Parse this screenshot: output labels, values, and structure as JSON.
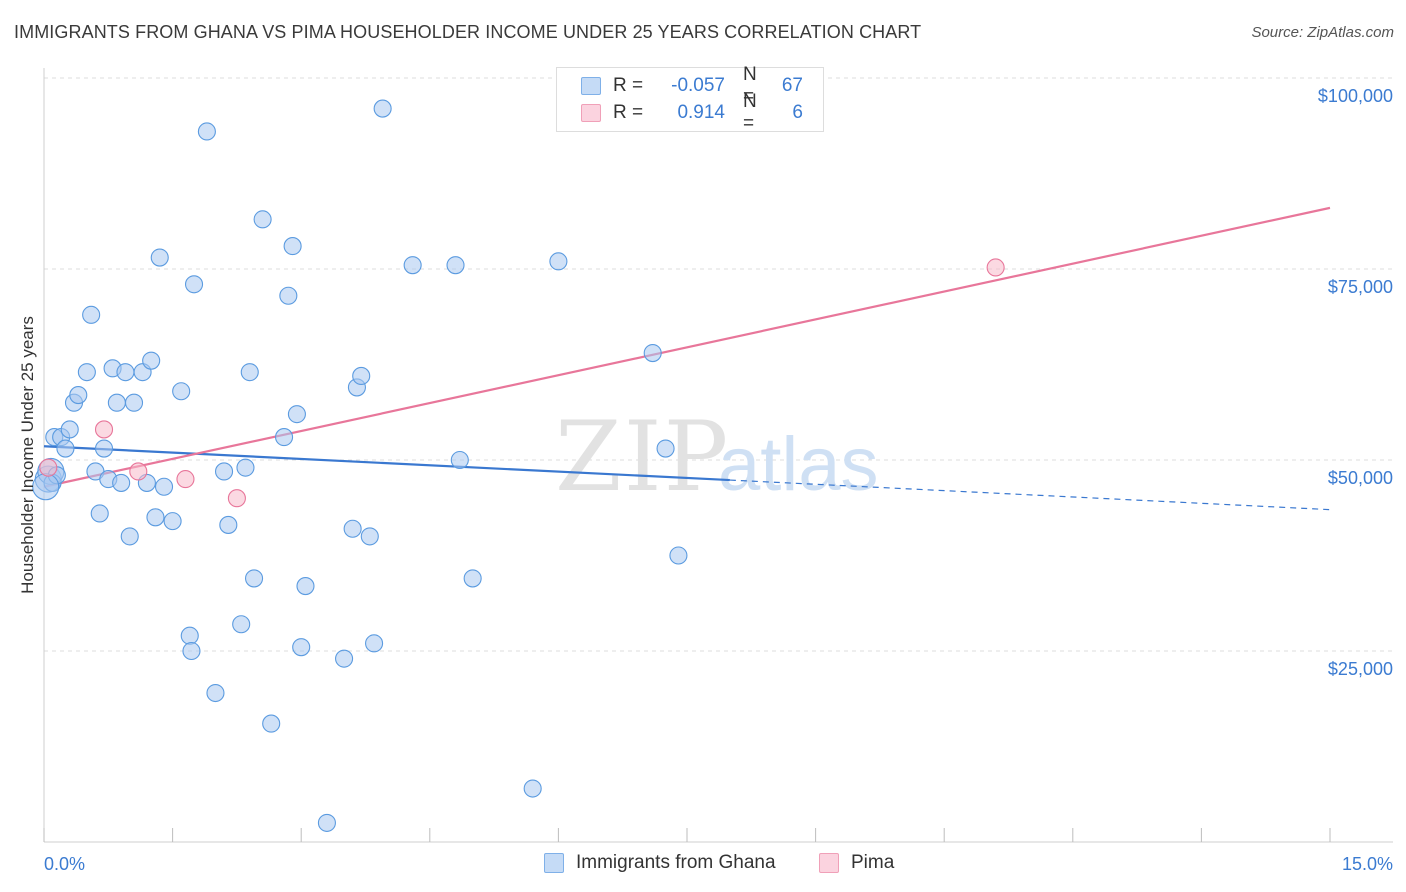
{
  "header": {
    "title": "IMMIGRANTS FROM GHANA VS PIMA HOUSEHOLDER INCOME UNDER 25 YEARS CORRELATION CHART",
    "source": "Source: ZipAtlas.com"
  },
  "watermark": {
    "zip": "ZIP",
    "atlas": "atlas"
  },
  "legend": {
    "rows": [
      {
        "r_label": "R =",
        "r_value": "-0.057",
        "n_label": "N =",
        "n_value": "67",
        "color": "#a9c8f0"
      },
      {
        "r_label": "R =",
        "r_value": "0.914",
        "n_label": "N =",
        "n_value": "6",
        "color": "#f7b9ca"
      }
    ]
  },
  "bottom_legend": {
    "items": [
      {
        "label": "Immigrants from Ghana",
        "color": "#a9c8f0"
      },
      {
        "label": "Pima",
        "color": "#f7b9ca"
      }
    ]
  },
  "chart_data": {
    "type": "scatter",
    "title": "IMMIGRANTS FROM GHANA VS PIMA HOUSEHOLDER INCOME UNDER 25 YEARS CORRELATION CHART",
    "xlabel": "",
    "ylabel": "Householder Income Under 25 years",
    "xlim": [
      0,
      15
    ],
    "ylim": [
      0,
      100000
    ],
    "x_tick_labels": {
      "min": "0.0%",
      "max": "15.0%"
    },
    "y_ticks": [
      {
        "value": 25000,
        "label": "$25,000"
      },
      {
        "value": 50000,
        "label": "$50,000"
      },
      {
        "value": 75000,
        "label": "$75,000"
      },
      {
        "value": 100000,
        "label": "$100,000"
      }
    ],
    "grid": "horizontal-dashed",
    "series": [
      {
        "name": "Immigrants from Ghana",
        "color": "#5b9be0",
        "fill": "#a9c8f0",
        "points": [
          [
            0.05,
            47500
          ],
          [
            0.08,
            48500
          ],
          [
            0.1,
            47000
          ],
          [
            0.12,
            53000
          ],
          [
            0.15,
            48000
          ],
          [
            0.2,
            53000
          ],
          [
            0.25,
            51500
          ],
          [
            0.3,
            54000
          ],
          [
            0.35,
            57500
          ],
          [
            0.4,
            58500
          ],
          [
            0.5,
            61500
          ],
          [
            0.55,
            69000
          ],
          [
            0.6,
            48500
          ],
          [
            0.65,
            43000
          ],
          [
            0.7,
            51500
          ],
          [
            0.75,
            47500
          ],
          [
            0.8,
            62000
          ],
          [
            0.85,
            57500
          ],
          [
            0.9,
            47000
          ],
          [
            0.95,
            61500
          ],
          [
            1.0,
            40000
          ],
          [
            1.05,
            57500
          ],
          [
            1.15,
            61500
          ],
          [
            1.2,
            47000
          ],
          [
            1.25,
            63000
          ],
          [
            1.3,
            42500
          ],
          [
            1.35,
            76500
          ],
          [
            1.4,
            46500
          ],
          [
            1.5,
            42000
          ],
          [
            1.6,
            59000
          ],
          [
            1.7,
            27000
          ],
          [
            1.72,
            25000
          ],
          [
            1.75,
            73000
          ],
          [
            1.9,
            93000
          ],
          [
            2.0,
            19500
          ],
          [
            2.1,
            48500
          ],
          [
            2.15,
            41500
          ],
          [
            2.3,
            28500
          ],
          [
            2.35,
            49000
          ],
          [
            2.4,
            61500
          ],
          [
            2.45,
            34500
          ],
          [
            2.55,
            81500
          ],
          [
            2.65,
            15500
          ],
          [
            2.8,
            53000
          ],
          [
            2.85,
            71500
          ],
          [
            2.9,
            78000
          ],
          [
            2.95,
            56000
          ],
          [
            3.0,
            25500
          ],
          [
            3.05,
            33500
          ],
          [
            3.3,
            2500
          ],
          [
            3.5,
            24000
          ],
          [
            3.6,
            41000
          ],
          [
            3.65,
            59500
          ],
          [
            3.7,
            61000
          ],
          [
            3.8,
            40000
          ],
          [
            3.85,
            26000
          ],
          [
            3.95,
            96000
          ],
          [
            4.3,
            75500
          ],
          [
            4.8,
            75500
          ],
          [
            4.85,
            50000
          ],
          [
            5.0,
            34500
          ],
          [
            5.7,
            7000
          ],
          [
            6.0,
            76000
          ],
          [
            7.1,
            64000
          ],
          [
            7.25,
            51500
          ],
          [
            7.4,
            37500
          ],
          [
            0.02,
            46500
          ]
        ],
        "trend": {
          "x0": 0,
          "y0": 51800,
          "x_solid_end": 8.0,
          "x1": 15.0,
          "y1": 43500
        }
      },
      {
        "name": "Pima",
        "color": "#e8769a",
        "fill": "#f7b9ca",
        "points": [
          [
            0.05,
            49000
          ],
          [
            0.7,
            54000
          ],
          [
            1.1,
            48500
          ],
          [
            1.65,
            47500
          ],
          [
            2.25,
            45000
          ],
          [
            11.1,
            75200
          ]
        ],
        "trend": {
          "x0": 0,
          "y0": 46500,
          "x1": 15.0,
          "y1": 83000
        }
      }
    ]
  }
}
